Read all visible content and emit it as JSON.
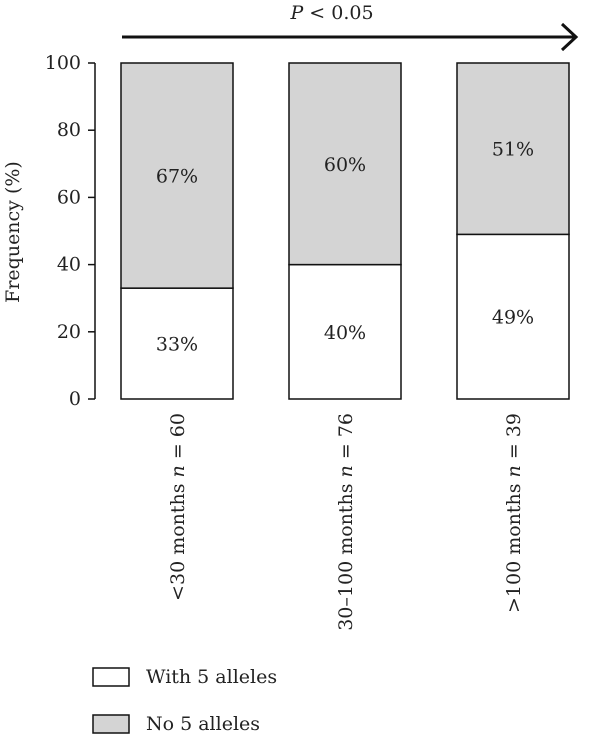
{
  "chart_data": {
    "type": "bar",
    "stacked": true,
    "categories": [
      "<30 months n = 60",
      "30–100 months n = 76",
      ">100 months n = 39"
    ],
    "category_parts": [
      {
        "text": "<30 months ",
        "n_symbol": "n",
        "n_value": " = 60"
      },
      {
        "text": "30–100 months ",
        "n_symbol": "n",
        "n_value": " = 76"
      },
      {
        "text": ">100 months ",
        "n_symbol": "n",
        "n_value": " = 39"
      }
    ],
    "series": [
      {
        "name": "With 5 alleles",
        "values": [
          33,
          40,
          49
        ],
        "labels": [
          "33%",
          "40%",
          "49%"
        ],
        "color": "#ffffff"
      },
      {
        "name": "No 5 alleles",
        "values": [
          67,
          60,
          51
        ],
        "labels": [
          "67%",
          "60%",
          "51%"
        ],
        "color": "#d4d4d4"
      }
    ],
    "ylabel": "Frequency (%)",
    "ylim": [
      0,
      100
    ],
    "yticks": [
      0,
      20,
      40,
      60,
      80,
      100
    ],
    "legend_position": "bottom-left",
    "annotation": {
      "p_symbol": "P",
      "text": " < 0.05"
    }
  }
}
